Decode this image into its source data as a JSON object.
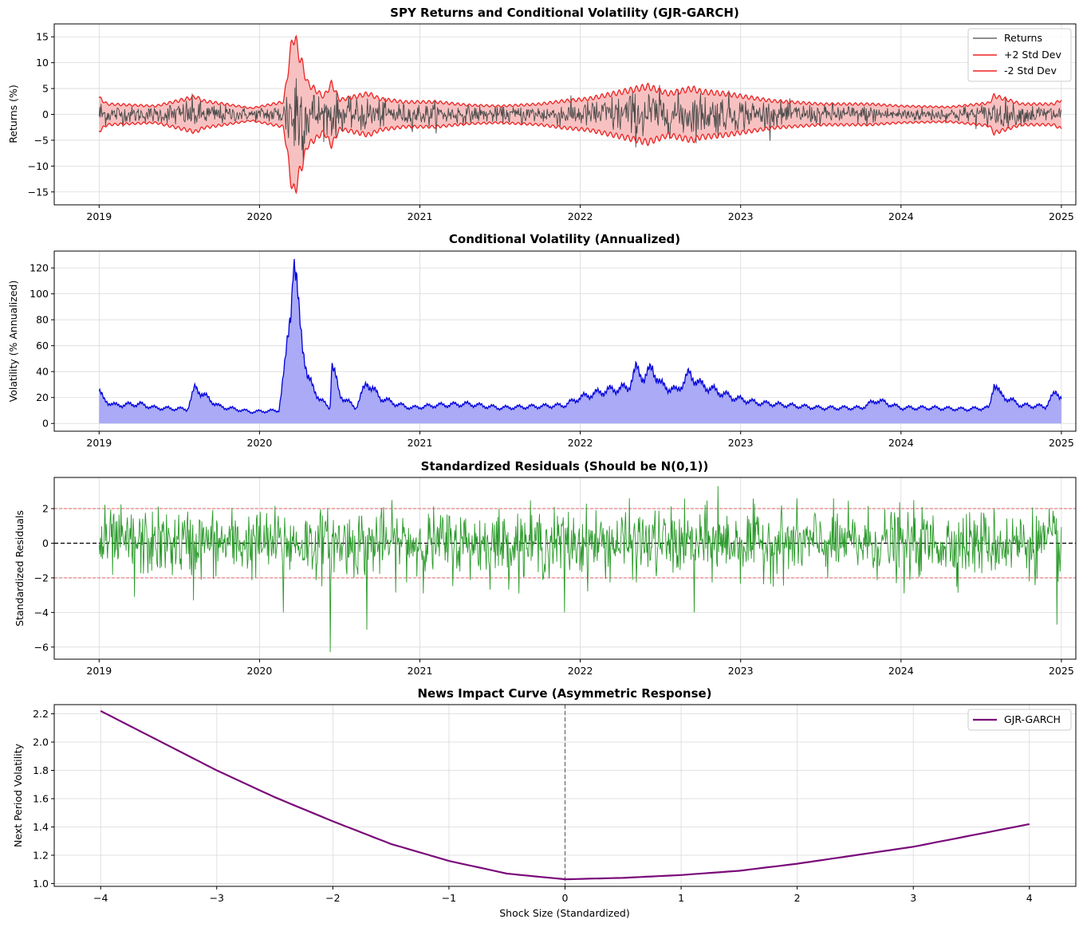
{
  "colors": {
    "returns": "#4a4a4a",
    "band_line": "#ee2222",
    "band_fill": "#f7b6b6",
    "vol_line": "#0000dd",
    "vol_fill": "#aaaaf6",
    "resid_line": "#2a9a2a",
    "ref_red": "#e05050",
    "nic_line": "#7a0a7a"
  },
  "chart_data": [
    {
      "id": "returns",
      "type": "line",
      "title": "SPY Returns and Conditional Volatility (GJR-GARCH)",
      "xlabel": "",
      "ylabel": "Returns (%)",
      "x_range": [
        "2019-01-02",
        "2024-12-31"
      ],
      "xlim": [
        2018.72,
        2025.09
      ],
      "ylim": [
        -17.5,
        17.5
      ],
      "x_ticks": [
        "2019",
        "2020",
        "2021",
        "2022",
        "2023",
        "2024",
        "2025"
      ],
      "y_ticks": [
        -15,
        -10,
        -5,
        0,
        5,
        10,
        15
      ],
      "grid": true,
      "legend": {
        "placement": "top-right",
        "entries": [
          "Returns",
          "+2 Std Dev",
          "-2 Std Dev"
        ]
      },
      "volatility_anchors": {
        "date": [
          2019.0,
          2019.05,
          2019.35,
          2019.6,
          2019.65,
          2019.95,
          2020.15,
          2020.21,
          2020.3,
          2020.4,
          2020.45,
          2020.5,
          2020.68,
          2020.75,
          2020.9,
          2021.1,
          2021.3,
          2021.5,
          2021.75,
          2021.9,
          2022.05,
          2022.3,
          2022.42,
          2022.55,
          2022.7,
          2022.75,
          2022.9,
          2023.2,
          2023.5,
          2023.8,
          2024.0,
          2024.3,
          2024.55,
          2024.58,
          2024.75,
          2024.95,
          2025.0
        ],
        "daily_sd_pct": [
          1.6,
          1.0,
          0.8,
          1.7,
          1.3,
          0.6,
          1.2,
          7.8,
          3.0,
          1.7,
          3.0,
          1.4,
          2.0,
          1.5,
          1.2,
          1.2,
          0.9,
          0.8,
          1.0,
          1.3,
          1.5,
          2.3,
          2.7,
          2.0,
          2.5,
          2.2,
          2.0,
          1.3,
          1.0,
          1.0,
          0.8,
          0.7,
          1.1,
          1.8,
          1.0,
          1.0,
          1.4
        ]
      }
    },
    {
      "id": "volatility",
      "type": "area",
      "title": "Conditional Volatility (Annualized)",
      "xlabel": "",
      "ylabel": "Volatility (% Annualized)",
      "x_range": [
        "2019-01-02",
        "2024-12-31"
      ],
      "xlim": [
        2018.72,
        2025.09
      ],
      "ylim": [
        -6,
        133
      ],
      "x_ticks": [
        "2019",
        "2020",
        "2021",
        "2022",
        "2023",
        "2024",
        "2025"
      ],
      "y_ticks": [
        0,
        20,
        40,
        60,
        80,
        100,
        120
      ],
      "grid": true,
      "series": [
        {
          "date": [
            2019.0,
            2019.03,
            2019.1,
            2019.25,
            2019.35,
            2019.55,
            2019.6,
            2019.65,
            2019.75,
            2019.95,
            2020.12,
            2020.16,
            2020.2,
            2020.21,
            2020.25,
            2020.3,
            2020.38,
            2020.44,
            2020.45,
            2020.5,
            2020.6,
            2020.67,
            2020.75,
            2020.85,
            2020.95,
            2021.1,
            2021.3,
            2021.5,
            2021.7,
            2021.9,
            2022.0,
            2022.15,
            2022.3,
            2022.35,
            2022.4,
            2022.45,
            2022.5,
            2022.6,
            2022.68,
            2022.75,
            2022.85,
            2022.95,
            2023.1,
            2023.3,
            2023.5,
            2023.75,
            2023.85,
            2024.0,
            2024.2,
            2024.4,
            2024.55,
            2024.58,
            2024.62,
            2024.75,
            2024.9,
            2024.97,
            2025.0
          ],
          "value": [
            25,
            18,
            14,
            15,
            12,
            11,
            28,
            22,
            13,
            9,
            10,
            45,
            100,
            128,
            80,
            35,
            18,
            12,
            48,
            22,
            12,
            32,
            20,
            15,
            12,
            14,
            15,
            12,
            13,
            14,
            20,
            25,
            28,
            42,
            35,
            43,
            30,
            25,
            38,
            30,
            25,
            20,
            16,
            14,
            12,
            12,
            18,
            12,
            12,
            11,
            12,
            32,
            22,
            14,
            13,
            25,
            20
          ]
        }
      ]
    },
    {
      "id": "residuals",
      "type": "line",
      "title": "Standardized Residuals (Should be N(0,1))",
      "xlabel": "",
      "ylabel": "Standardized Residuals",
      "x_range": [
        "2019-01-02",
        "2024-12-31"
      ],
      "xlim": [
        2018.72,
        2025.09
      ],
      "ylim": [
        -6.7,
        3.8
      ],
      "x_ticks": [
        "2019",
        "2020",
        "2021",
        "2022",
        "2023",
        "2024",
        "2025"
      ],
      "y_ticks": [
        -6,
        -4,
        -2,
        0,
        2
      ],
      "grid": true,
      "reference_lines": [
        2,
        0,
        -2
      ],
      "notable_points": {
        "date": [
          2019.22,
          2019.59,
          2020.15,
          2020.44,
          2020.67,
          2021.9,
          2022.71,
          2022.86,
          2024.02,
          2024.97
        ],
        "value": [
          -3.1,
          -3.3,
          -4.0,
          -6.3,
          -5.0,
          -4.0,
          -4.0,
          3.3,
          -2.9,
          -4.7
        ]
      }
    },
    {
      "id": "news_impact",
      "type": "line",
      "title": "News Impact Curve (Asymmetric Response)",
      "xlabel": "Shock Size (Standardized)",
      "ylabel": "Next Period Volatility",
      "xlim": [
        -4.4,
        4.4
      ],
      "ylim": [
        0.98,
        2.265
      ],
      "x_ticks": [
        -4,
        -3,
        -2,
        -1,
        0,
        1,
        2,
        3,
        4
      ],
      "y_ticks": [
        1.0,
        1.2,
        1.4,
        1.6,
        1.8,
        2.0,
        2.2
      ],
      "grid": true,
      "vertical_line_x": 0,
      "legend": {
        "placement": "top-right",
        "entries": [
          "GJR-GARCH"
        ]
      },
      "series": [
        {
          "name": "GJR-GARCH",
          "x": [
            -4,
            -3.5,
            -3,
            -2.5,
            -2,
            -1.5,
            -1,
            -0.5,
            0,
            0.5,
            1,
            1.5,
            2,
            2.5,
            3,
            3.5,
            4
          ],
          "y": [
            2.22,
            2.01,
            1.8,
            1.61,
            1.44,
            1.28,
            1.16,
            1.07,
            1.03,
            1.04,
            1.06,
            1.09,
            1.14,
            1.2,
            1.26,
            1.34,
            1.42
          ]
        }
      ]
    }
  ]
}
